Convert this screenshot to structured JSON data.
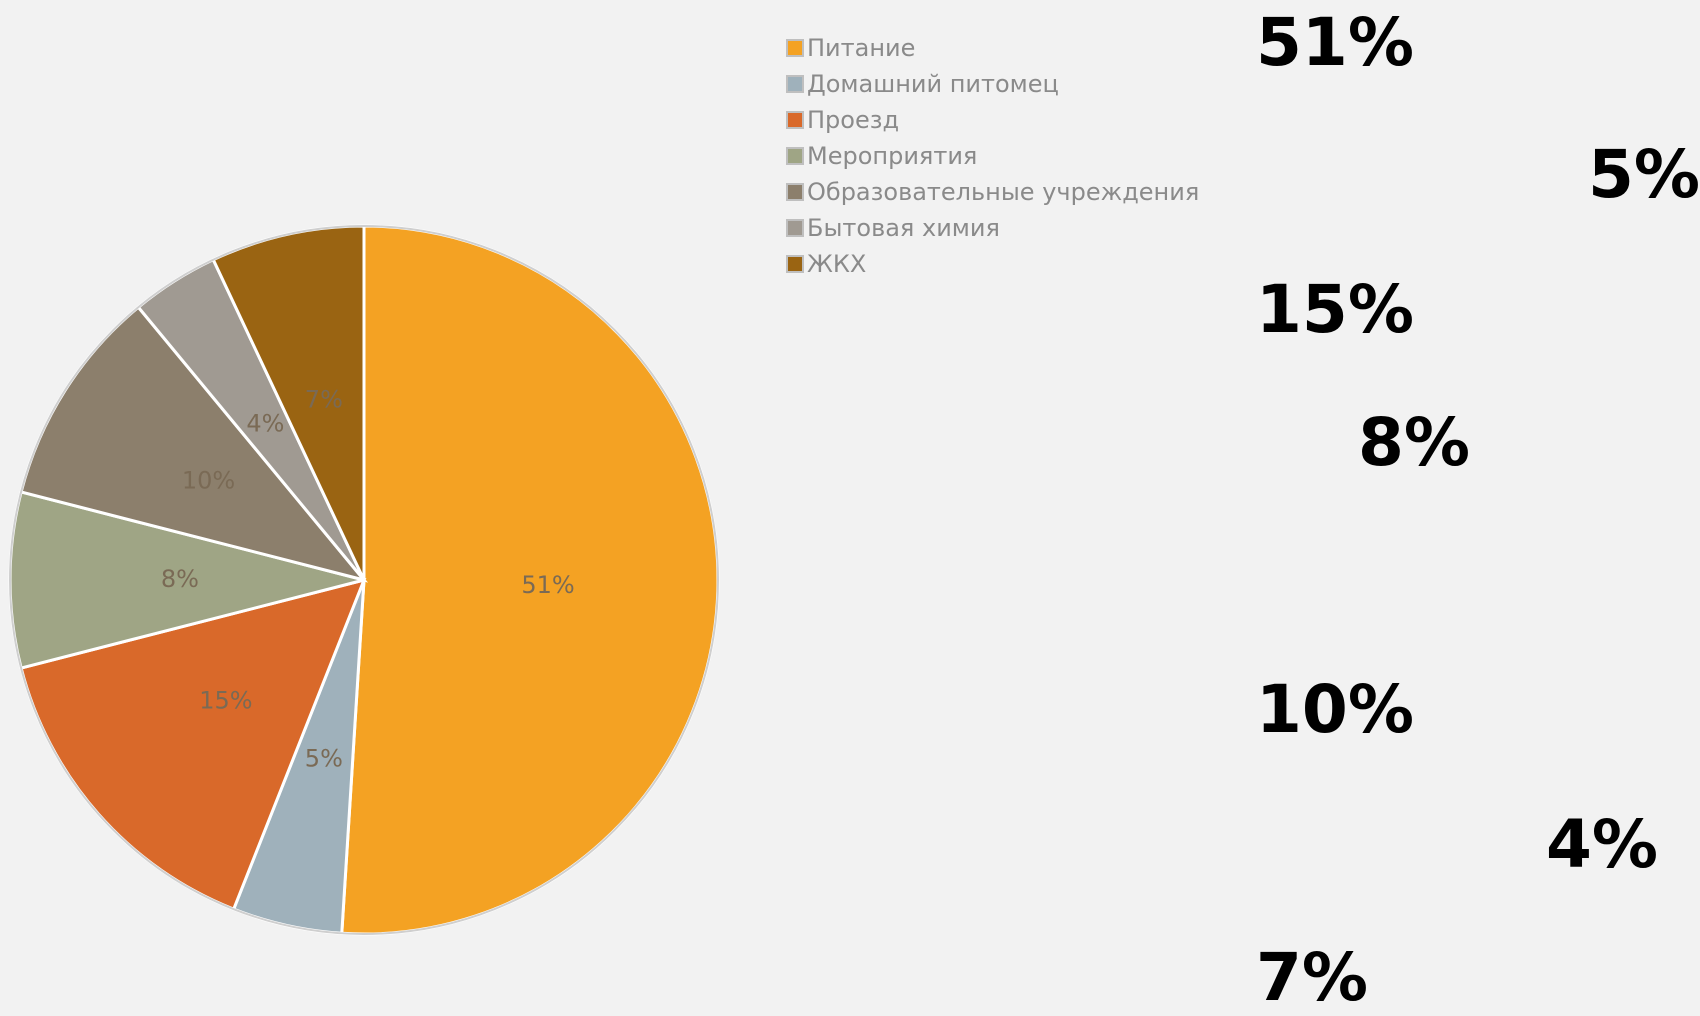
{
  "chart_data": {
    "type": "pie",
    "title": "",
    "categories": [
      "Питание",
      "Домашний питомец",
      "Проезд",
      "Мероприятия",
      "Образовательные учреждения",
      "Бытовая химия",
      "ЖКХ"
    ],
    "values": [
      51,
      5,
      15,
      8,
      10,
      4,
      7
    ],
    "slice_labels": [
      "51%",
      "5%",
      "15%",
      "8%",
      "10%",
      "4%",
      "7%"
    ],
    "colors": [
      "#f4a223",
      "#9fb1bb",
      "#d9692a",
      "#9fa585",
      "#8c7f6c",
      "#a09a92",
      "#9a6412"
    ],
    "legend_position": "top-right",
    "start_angle_deg": 0,
    "direction": "clockwise"
  },
  "overlay_percentages": [
    "51%",
    "5%",
    "15%",
    "8%",
    "10%",
    "4%",
    "7%"
  ]
}
